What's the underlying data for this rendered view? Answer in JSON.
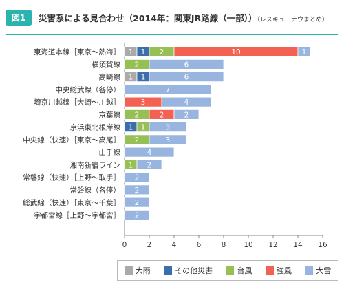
{
  "header": {
    "badge": "図1",
    "title": "災害系による見合わせ（2014年：関東JR路線（一部））",
    "subtitle": "（レスキューナウまとめ）"
  },
  "colors": {
    "大雨": "#aaaaaa",
    "その他災害": "#3b6eab",
    "台風": "#96bf54",
    "強風": "#f26152",
    "大雪": "#98b5e0"
  },
  "chart_data": {
    "type": "bar",
    "orientation": "horizontal",
    "stacked": true,
    "categories": [
      "東海道本線［東京～熱海］",
      "横須賀線",
      "高崎線",
      "中央総武線（各停）",
      "埼京川越線［大崎～川越］",
      "京葉線",
      "京浜東北根岸線",
      "中央線（快速）［東京～高尾］",
      "山手線",
      "湘南新宿ライン",
      "常磐線（快速）［上野～取手］",
      "常磐線（各停）",
      "総武線（快速）［東京～千葉］",
      "宇都宮線［上野～宇都宮］"
    ],
    "series": [
      {
        "name": "大雨",
        "values": [
          1,
          0,
          1,
          0,
          0,
          0,
          0,
          0,
          0,
          0,
          0,
          0,
          0,
          0
        ]
      },
      {
        "name": "その他災害",
        "values": [
          1,
          0,
          1,
          0,
          0,
          0,
          1,
          0,
          0,
          0,
          0,
          0,
          0,
          0
        ]
      },
      {
        "name": "台風",
        "values": [
          2,
          2,
          0,
          0,
          0,
          2,
          1,
          2,
          0,
          1,
          0,
          0,
          0,
          0
        ]
      },
      {
        "name": "強風",
        "values": [
          10,
          0,
          0,
          0,
          3,
          2,
          0,
          0,
          0,
          0,
          0,
          0,
          0,
          0
        ]
      },
      {
        "name": "大雪",
        "values": [
          1,
          6,
          6,
          7,
          4,
          2,
          3,
          3,
          4,
          2,
          2,
          2,
          2,
          2
        ]
      }
    ],
    "xlim": [
      0,
      16
    ],
    "xticks": [
      0,
      2,
      4,
      6,
      8,
      10,
      12,
      14,
      16
    ],
    "grid": false,
    "legend_position": "bottom"
  }
}
